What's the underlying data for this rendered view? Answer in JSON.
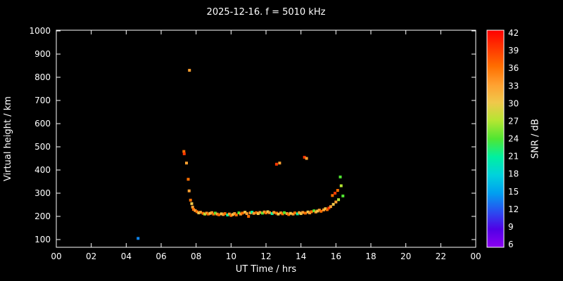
{
  "chart_data": {
    "type": "scatter",
    "title": "2025-12-16. f = 5010 kHz",
    "xlabel": "UT Time / hrs",
    "ylabel": "Virtual height / km",
    "colorbar_label": "SNR / dB",
    "background": "#000000",
    "axis_color": "#ffffff",
    "xlim": [
      0,
      24
    ],
    "ylim": [
      100,
      1000
    ],
    "grid": false,
    "x_ticks": {
      "values": [
        0,
        2,
        4,
        6,
        8,
        10,
        12,
        14,
        16,
        18,
        20,
        22,
        24
      ],
      "labels": [
        "00",
        "02",
        "04",
        "06",
        "08",
        "10",
        "12",
        "14",
        "16",
        "18",
        "20",
        "22",
        "00"
      ]
    },
    "y_ticks": {
      "values": [
        100,
        200,
        300,
        400,
        500,
        600,
        700,
        800,
        900,
        1000
      ],
      "labels": [
        "100",
        "200",
        "300",
        "400",
        "500",
        "600",
        "700",
        "800",
        "900",
        "1000"
      ]
    },
    "colorbar_ticks": {
      "values": [
        6,
        9,
        12,
        15,
        18,
        21,
        24,
        27,
        30,
        33,
        36,
        39,
        42
      ],
      "labels": [
        "6",
        "9",
        "12",
        "15",
        "18",
        "21",
        "24",
        "27",
        "30",
        "33",
        "36",
        "39",
        "42"
      ]
    },
    "color_scale": [
      {
        "value": 6,
        "color": "#8c00f0"
      },
      {
        "value": 9,
        "color": "#5000e6"
      },
      {
        "value": 12,
        "color": "#2850f0"
      },
      {
        "value": 15,
        "color": "#00a0f0"
      },
      {
        "value": 18,
        "color": "#00d2dc"
      },
      {
        "value": 21,
        "color": "#00f0a0"
      },
      {
        "value": 24,
        "color": "#50e632"
      },
      {
        "value": 27,
        "color": "#b4e632"
      },
      {
        "value": 30,
        "color": "#f0c84b"
      },
      {
        "value": 33,
        "color": "#ffa030"
      },
      {
        "value": 36,
        "color": "#ff6e00"
      },
      {
        "value": 39,
        "color": "#ff3700"
      },
      {
        "value": 42,
        "color": "#ff0000"
      }
    ],
    "points_format": [
      "x_hours",
      "height_km",
      "snr_db"
    ],
    "points": [
      [
        4.68,
        105,
        14
      ],
      [
        7.3,
        480,
        36
      ],
      [
        7.32,
        470,
        39
      ],
      [
        7.45,
        430,
        33
      ],
      [
        7.62,
        830,
        33
      ],
      [
        7.55,
        360,
        36
      ],
      [
        7.6,
        310,
        33
      ],
      [
        7.68,
        270,
        36
      ],
      [
        7.75,
        255,
        30
      ],
      [
        7.8,
        240,
        33
      ],
      [
        7.85,
        230,
        36
      ],
      [
        7.95,
        225,
        33
      ],
      [
        8.05,
        220,
        36
      ],
      [
        8.15,
        215,
        30
      ],
      [
        8.25,
        218,
        33
      ],
      [
        8.4,
        213,
        36
      ],
      [
        8.5,
        210,
        27
      ],
      [
        8.6,
        214,
        33
      ],
      [
        8.7,
        210,
        36
      ],
      [
        8.8,
        213,
        30
      ],
      [
        8.9,
        216,
        33
      ],
      [
        9.0,
        210,
        36
      ],
      [
        9.1,
        214,
        24
      ],
      [
        9.2,
        210,
        33
      ],
      [
        9.3,
        207,
        36
      ],
      [
        9.45,
        211,
        30
      ],
      [
        9.55,
        208,
        33
      ],
      [
        9.65,
        212,
        36
      ],
      [
        9.8,
        206,
        21
      ],
      [
        9.9,
        210,
        33
      ],
      [
        10.0,
        204,
        36
      ],
      [
        10.1,
        208,
        30
      ],
      [
        10.2,
        212,
        33
      ],
      [
        10.3,
        206,
        36
      ],
      [
        10.45,
        215,
        24
      ],
      [
        10.55,
        210,
        33
      ],
      [
        10.65,
        214,
        36
      ],
      [
        10.8,
        218,
        30
      ],
      [
        10.9,
        212,
        33
      ],
      [
        11.0,
        200,
        36
      ],
      [
        11.1,
        215,
        33
      ],
      [
        11.2,
        218,
        21
      ],
      [
        11.3,
        213,
        33
      ],
      [
        11.45,
        216,
        36
      ],
      [
        11.55,
        212,
        30
      ],
      [
        11.65,
        217,
        33
      ],
      [
        11.8,
        214,
        24
      ],
      [
        11.9,
        219,
        33
      ],
      [
        12.0,
        215,
        36
      ],
      [
        12.1,
        220,
        30
      ],
      [
        12.2,
        216,
        33
      ],
      [
        12.35,
        212,
        21
      ],
      [
        12.45,
        217,
        33
      ],
      [
        12.6,
        425,
        39
      ],
      [
        12.78,
        430,
        33
      ],
      [
        12.6,
        214,
        36
      ],
      [
        12.7,
        210,
        30
      ],
      [
        12.85,
        215,
        33
      ],
      [
        12.95,
        211,
        36
      ],
      [
        13.05,
        216,
        24
      ],
      [
        13.2,
        212,
        33
      ],
      [
        13.3,
        208,
        36
      ],
      [
        13.4,
        213,
        30
      ],
      [
        13.55,
        210,
        33
      ],
      [
        13.65,
        215,
        36
      ],
      [
        13.8,
        211,
        21
      ],
      [
        13.9,
        216,
        33
      ],
      [
        14.0,
        212,
        30
      ],
      [
        14.1,
        217,
        33
      ],
      [
        14.2,
        455,
        39
      ],
      [
        14.32,
        450,
        33
      ],
      [
        14.25,
        214,
        36
      ],
      [
        14.4,
        219,
        30
      ],
      [
        14.5,
        215,
        33
      ],
      [
        14.6,
        220,
        36
      ],
      [
        14.75,
        224,
        24
      ],
      [
        14.85,
        219,
        33
      ],
      [
        14.95,
        223,
        30
      ],
      [
        15.05,
        227,
        33
      ],
      [
        15.15,
        222,
        36
      ],
      [
        15.3,
        228,
        33
      ],
      [
        15.4,
        233,
        30
      ],
      [
        15.5,
        229,
        36
      ],
      [
        15.6,
        236,
        39
      ],
      [
        15.7,
        242,
        33
      ],
      [
        15.8,
        290,
        36
      ],
      [
        15.85,
        252,
        30
      ],
      [
        15.95,
        300,
        39
      ],
      [
        16.0,
        262,
        33
      ],
      [
        16.1,
        312,
        36
      ],
      [
        16.15,
        272,
        27
      ],
      [
        16.25,
        370,
        24
      ],
      [
        16.3,
        332,
        27
      ],
      [
        16.4,
        288,
        24
      ]
    ]
  }
}
